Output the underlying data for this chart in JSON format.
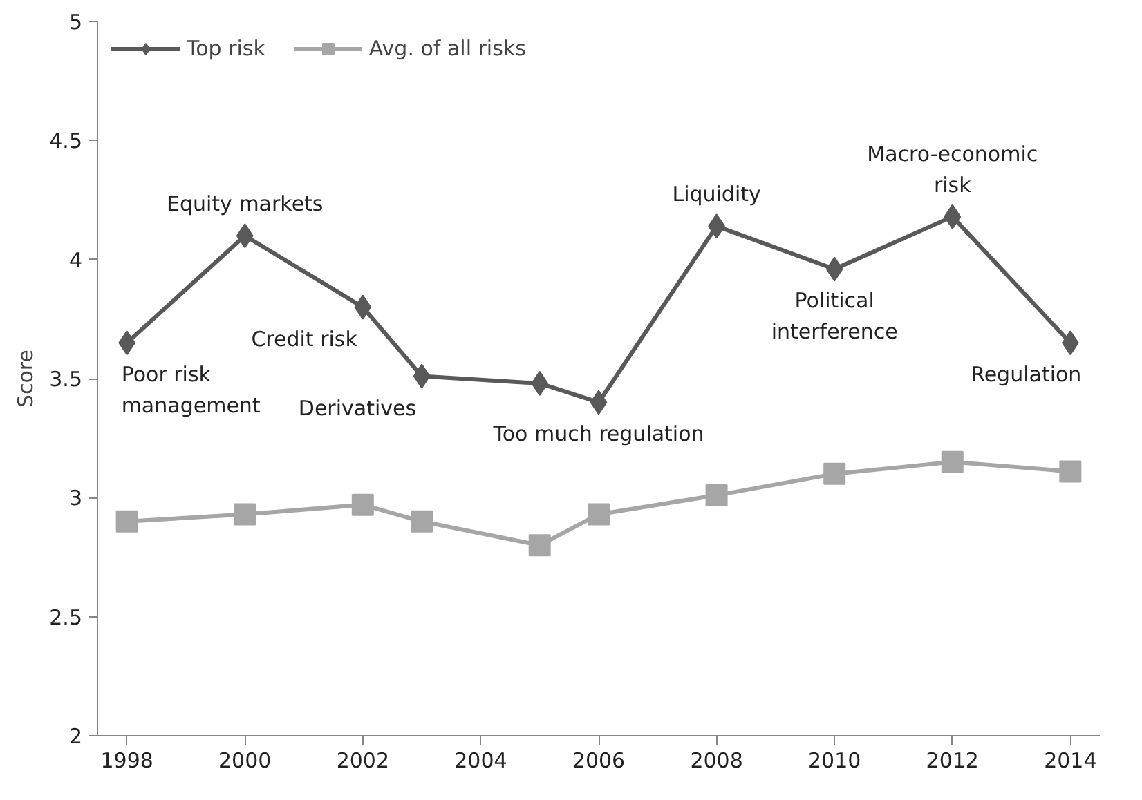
{
  "chart_data": {
    "type": "line",
    "ylabel": "Score",
    "x": [
      1998,
      2000,
      2002,
      2003,
      2005,
      2006,
      2008,
      2010,
      2012,
      2014
    ],
    "series": [
      {
        "name": "Top risk",
        "color": "#595959",
        "marker": "diamond",
        "values": [
          3.65,
          4.1,
          3.8,
          3.51,
          3.48,
          3.4,
          4.14,
          3.96,
          4.18,
          3.65
        ]
      },
      {
        "name": "Avg. of all risks",
        "color": "#a6a6a6",
        "marker": "square",
        "values": [
          2.9,
          2.93,
          2.97,
          2.9,
          2.8,
          2.93,
          3.01,
          3.1,
          3.15,
          3.11
        ]
      }
    ],
    "xlim": [
      1997.5,
      2014.5
    ],
    "xticks": [
      1998,
      2000,
      2002,
      2004,
      2006,
      2008,
      2010,
      2012,
      2014
    ],
    "ylim": [
      2,
      5
    ],
    "yticks": [
      2,
      2.5,
      3,
      3.5,
      4,
      4.5,
      5
    ],
    "grid": false,
    "legend": "top left",
    "annotations": [
      {
        "text": "Poor risk\nmanagement",
        "x": 1998,
        "y": 3.65
      },
      {
        "text": "Equity markets",
        "x": 2000,
        "y": 4.1
      },
      {
        "text": "Credit risk",
        "x": 2002,
        "y": 3.8
      },
      {
        "text": "Derivatives",
        "x": 2003,
        "y": 3.51
      },
      {
        "text": "Too much regulation",
        "x": 2006,
        "y": 3.4
      },
      {
        "text": "Liquidity",
        "x": 2008,
        "y": 4.14
      },
      {
        "text": "Political\ninterference",
        "x": 2010,
        "y": 3.96
      },
      {
        "text": "Macro-economic\nrisk",
        "x": 2012,
        "y": 4.18
      },
      {
        "text": "Regulation",
        "x": 2014,
        "y": 3.65
      }
    ]
  }
}
